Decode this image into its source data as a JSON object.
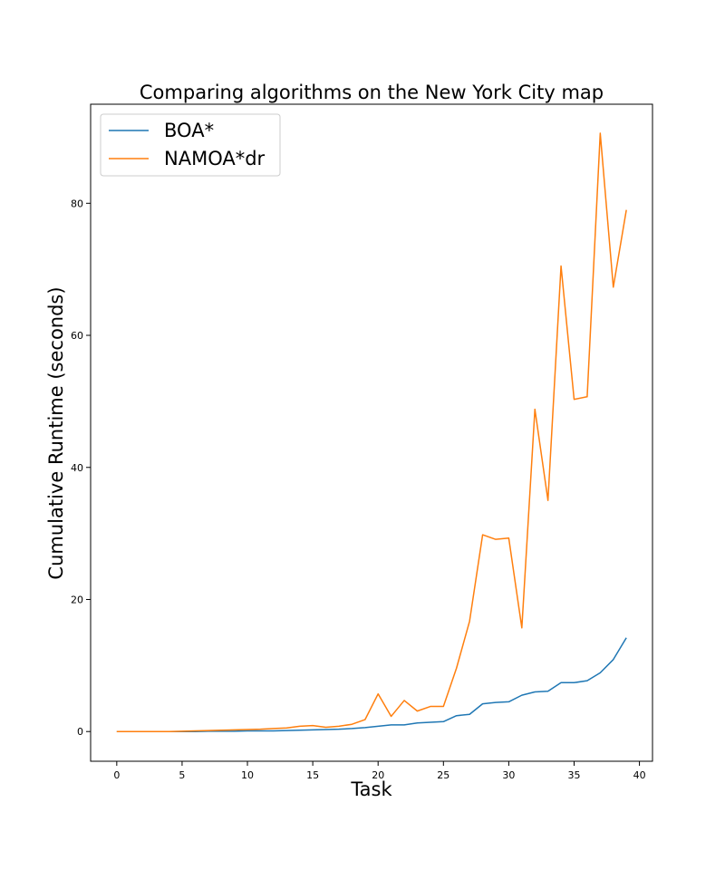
{
  "chart_data": {
    "type": "line",
    "title": "Comparing algorithms on the New York City map",
    "xlabel": "Task",
    "ylabel": "Cumulative Runtime (seconds)",
    "xlim": [
      -2,
      41
    ],
    "ylim": [
      -4.5,
      95
    ],
    "xticks": [
      0,
      5,
      10,
      15,
      20,
      25,
      30,
      35,
      40
    ],
    "yticks": [
      0,
      20,
      40,
      60,
      80
    ],
    "grid": false,
    "legend": "top-left",
    "x": [
      0,
      1,
      2,
      3,
      4,
      5,
      6,
      7,
      8,
      9,
      10,
      11,
      12,
      13,
      14,
      15,
      16,
      17,
      18,
      19,
      20,
      21,
      22,
      23,
      24,
      25,
      26,
      27,
      28,
      29,
      30,
      31,
      32,
      33,
      34,
      35,
      36,
      37,
      38,
      39
    ],
    "series": [
      {
        "name": "BOA*",
        "color": "#1f77b4",
        "values": [
          0.0,
          0.0,
          0.0,
          0.0,
          0.0,
          0.0,
          0.0,
          0.05,
          0.05,
          0.05,
          0.1,
          0.1,
          0.1,
          0.15,
          0.2,
          0.25,
          0.3,
          0.35,
          0.45,
          0.6,
          0.8,
          1.0,
          1.0,
          1.3,
          1.4,
          1.5,
          2.4,
          2.6,
          4.2,
          4.4,
          4.5,
          5.5,
          6.0,
          6.1,
          7.4,
          7.4,
          7.7,
          8.9,
          10.9,
          14.2
        ]
      },
      {
        "name": "NAMOA*dr",
        "color": "#ff7f0e",
        "values": [
          0.0,
          0.0,
          0.0,
          0.0,
          0.0,
          0.05,
          0.1,
          0.15,
          0.2,
          0.25,
          0.3,
          0.35,
          0.45,
          0.55,
          0.8,
          0.9,
          0.65,
          0.8,
          1.1,
          1.8,
          5.7,
          2.3,
          4.7,
          3.1,
          3.8,
          3.8,
          9.6,
          16.7,
          29.8,
          29.1,
          29.3,
          15.7,
          48.8,
          35.0,
          70.5,
          50.3,
          50.7,
          90.6,
          67.3,
          79.0
        ]
      }
    ]
  }
}
